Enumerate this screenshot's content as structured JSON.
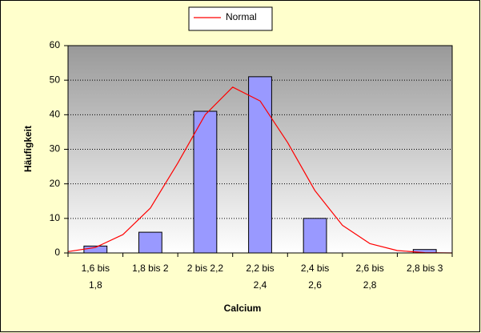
{
  "chart_data": {
    "type": "bar",
    "categories": [
      "1,6 bis 1,8",
      "1,8 bis 2",
      "2 bis 2,2",
      "2,2 bis 2,4",
      "2,4 bis 2,6",
      "2,6 bis 2,8",
      "2,8 bis 3"
    ],
    "values": [
      2,
      6,
      41,
      51,
      10,
      0,
      1
    ],
    "color": "#9999ff",
    "line": {
      "type": "line",
      "name": "Normal",
      "color": "#ff0000",
      "x": [
        1.6,
        1.7,
        1.8,
        1.9,
        2.0,
        2.1,
        2.2,
        2.3,
        2.4,
        2.5,
        2.6,
        2.7,
        2.8,
        2.9,
        3.0
      ],
      "values": [
        0.4,
        1.6,
        5.3,
        13,
        26,
        40,
        48,
        44,
        32,
        18,
        8,
        2.7,
        0.7,
        0.1,
        0
      ],
      "xlim": [
        1.6,
        3.0
      ]
    },
    "x_label": "Calcium",
    "y_label": "Häufigkeit",
    "ylim": [
      0,
      60
    ],
    "yticks": [
      0,
      10,
      20,
      30,
      40,
      50,
      60
    ],
    "grid": true,
    "legend": "top"
  }
}
